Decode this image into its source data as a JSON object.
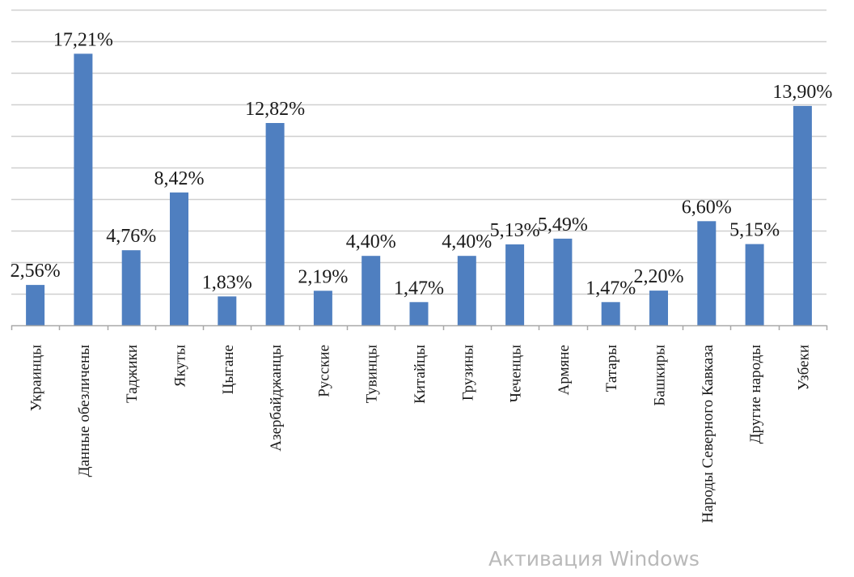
{
  "chart_data": {
    "type": "bar",
    "categories": [
      "Украинцы",
      "Данные обезличены",
      "Таджики",
      "Якуты",
      "Цыгане",
      "Азербайджанцы",
      "Русские",
      "Тувинцы",
      "Китайцы",
      "Грузины",
      "Чеченцы",
      "Армяне",
      "Татары",
      "Башкиры",
      "Народы Северного Кавказа",
      "Другие народы",
      "Узбеки"
    ],
    "values": [
      2.56,
      17.21,
      4.76,
      8.42,
      1.83,
      12.82,
      2.19,
      4.4,
      1.47,
      4.4,
      5.13,
      5.49,
      1.47,
      2.2,
      6.6,
      5.15,
      13.9
    ],
    "value_labels": [
      "2,56%",
      "17,21%",
      "4,76%",
      "8,42%",
      "1,83%",
      "12,82%",
      "2,19%",
      "4,40%",
      "1,47%",
      "4,40%",
      "5,13%",
      "5,49%",
      "1,47%",
      "2,20%",
      "6,60%",
      "5,15%",
      "13,90%"
    ],
    "title": "",
    "xlabel": "",
    "ylabel": "",
    "ylim": [
      0,
      20
    ],
    "grid": true,
    "legend": "none",
    "bar_color": "#4f7fc0",
    "grid_color": "#cfcfcf",
    "axis_color": "#a8a8a8"
  },
  "watermark": "Активация Windows"
}
